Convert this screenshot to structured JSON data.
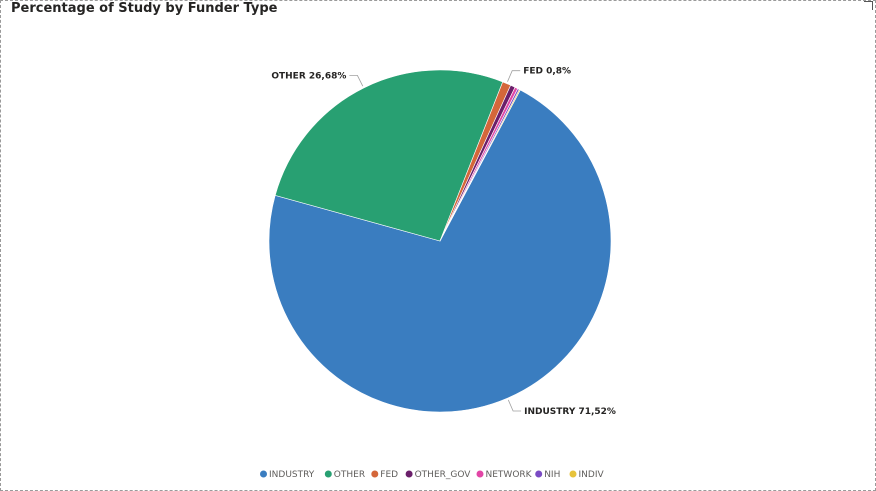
{
  "chart_data": {
    "type": "pie",
    "title": "Percentage of Study by Funder Type",
    "categories": [
      "INDUSTRY",
      "OTHER",
      "FED",
      "OTHER_GOV",
      "NETWORK",
      "NIH",
      "INDIV"
    ],
    "values": [
      71.52,
      26.68,
      0.8,
      0.45,
      0.28,
      0.17,
      0.1
    ],
    "colors": [
      "#3a7dc0",
      "#28a072",
      "#d4673a",
      "#6a1f6a",
      "#e246a6",
      "#7a4bc4",
      "#e7c33b"
    ],
    "data_labels": [
      {
        "category": "OTHER",
        "text": "OTHER 26,68%"
      },
      {
        "category": "FED",
        "text": "FED 0,8%"
      },
      {
        "category": "INDUSTRY",
        "text": "INDUSTRY 71,52%"
      }
    ],
    "legend": {
      "placement": "bottom-center"
    }
  }
}
